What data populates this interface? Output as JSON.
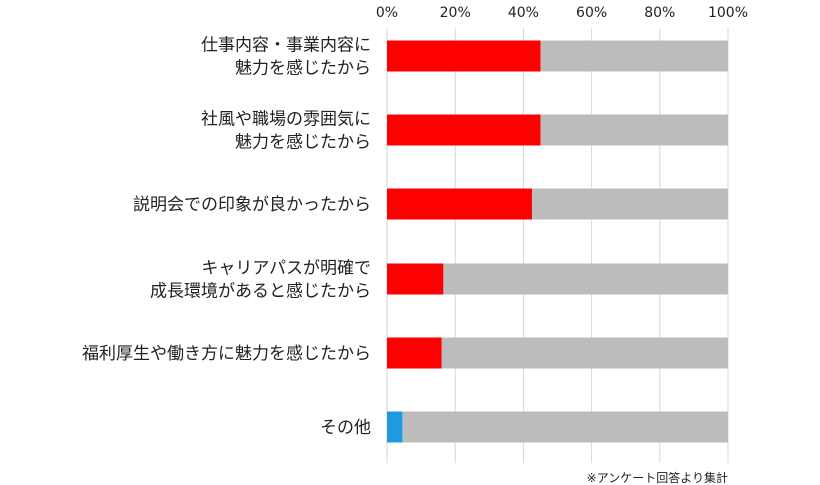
{
  "chart_data": {
    "type": "bar",
    "orientation": "horizontal",
    "stacked_percent": true,
    "categories": [
      [
        "仕事内容・事業内容に",
        "魅力を感じたから"
      ],
      [
        "社風や職場の雰囲気に",
        "魅力を感じたから"
      ],
      [
        "説明会での印象が良かったから"
      ],
      [
        "キャリアパスが明確で",
        "成長環境があると感じたから"
      ],
      [
        "福利厚生や働き方に魅力を感じたから"
      ],
      [
        "その他"
      ]
    ],
    "values": [
      45,
      45,
      42.5,
      16.5,
      16,
      4.5
    ],
    "highlight_colors": [
      "#ff0000",
      "#ff0000",
      "#ff0000",
      "#ff0000",
      "#ff0000",
      "#1f9ae0"
    ],
    "remainder_color": "#bcbcbc",
    "xlim": [
      0,
      100
    ],
    "xticks": [
      "0%",
      "20%",
      "40%",
      "60%",
      "80%",
      "100%"
    ],
    "grid": true,
    "note": "※アンケート回答より集計"
  }
}
